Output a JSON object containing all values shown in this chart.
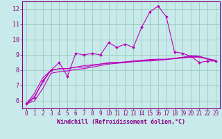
{
  "background_color": "#c8eaea",
  "grid_color": "#99ccbb",
  "line_color": "#bb00bb",
  "xlabel": "Windchill (Refroidissement éolien,°C)",
  "xlabel_color": "#880088",
  "tick_color": "#880088",
  "spine_color": "#880088",
  "xlim": [
    -0.5,
    23.5
  ],
  "ylim": [
    5.5,
    12.5
  ],
  "yticks": [
    6,
    7,
    8,
    9,
    10,
    11,
    12
  ],
  "xticks": [
    0,
    1,
    2,
    3,
    4,
    5,
    6,
    7,
    8,
    9,
    10,
    11,
    12,
    13,
    14,
    15,
    16,
    17,
    18,
    19,
    20,
    21,
    22,
    23
  ],
  "series": [
    [
      5.8,
      6.2,
      7.3,
      8.0,
      8.5,
      7.6,
      9.1,
      9.0,
      9.1,
      9.0,
      9.8,
      9.5,
      9.7,
      9.5,
      10.8,
      11.8,
      12.2,
      11.5,
      9.2,
      9.1,
      8.9,
      8.5,
      8.6,
      8.6
    ],
    [
      5.8,
      6.5,
      7.5,
      8.0,
      8.1,
      8.1,
      8.2,
      8.2,
      8.3,
      8.4,
      8.5,
      8.5,
      8.5,
      8.6,
      8.6,
      8.6,
      8.65,
      8.7,
      8.75,
      8.8,
      8.85,
      8.85,
      8.75,
      8.65
    ],
    [
      5.8,
      6.3,
      7.2,
      8.0,
      8.1,
      8.1,
      8.2,
      8.3,
      8.35,
      8.4,
      8.45,
      8.5,
      8.55,
      8.6,
      8.65,
      8.7,
      8.72,
      8.72,
      8.78,
      8.82,
      8.9,
      8.88,
      8.72,
      8.6
    ],
    [
      5.8,
      6.0,
      6.8,
      7.8,
      7.9,
      7.95,
      8.05,
      8.1,
      8.2,
      8.3,
      8.4,
      8.45,
      8.5,
      8.55,
      8.6,
      8.65,
      8.68,
      8.7,
      8.78,
      8.85,
      8.95,
      8.92,
      8.75,
      8.6
    ]
  ],
  "marker": "D",
  "markersize": 2.0,
  "linewidth": 0.8,
  "tick_fontsize": 5.5,
  "xlabel_fontsize": 6.0
}
